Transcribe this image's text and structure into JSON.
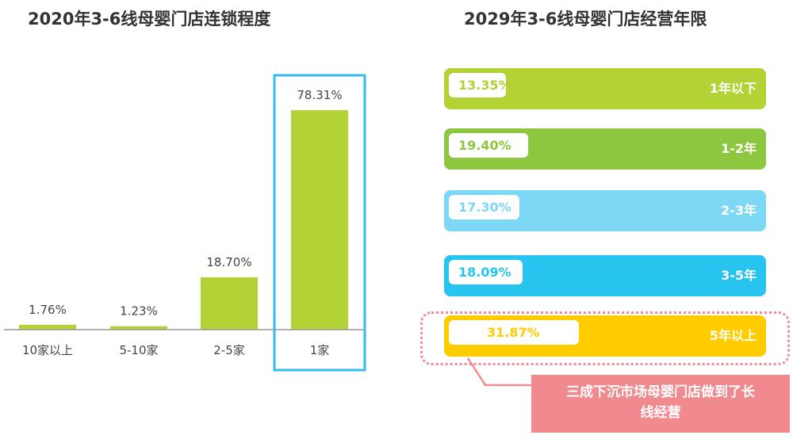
{
  "left_title": "2020年3-6线母婴门店连锁程度",
  "right_title": "2029年3-6线母婴门店经营年限",
  "colors": {
    "green": "#b2d235",
    "green_dark": "#8dc63f",
    "sky": "#7dd8f5",
    "cyan": "#27c4ef",
    "yellow": "#ffcc00",
    "highlight_frame": "#33bbee",
    "callout": "#f08a8f"
  },
  "chart_data": [
    {
      "type": "bar",
      "categories": [
        "10家以上",
        "5-10家",
        "2-5家",
        "1家"
      ],
      "values": [
        1.76,
        1.23,
        18.7,
        78.31
      ],
      "value_labels": [
        "1.76%",
        "1.23%",
        "18.70%",
        "78.31%"
      ],
      "ylim": [
        0,
        100
      ],
      "highlighted_category": "1家"
    },
    {
      "type": "bar",
      "orientation": "horizontal",
      "categories": [
        "1年以下",
        "1-2年",
        "2-3年",
        "3-5年",
        "5年以上"
      ],
      "values": [
        13.35,
        19.4,
        17.3,
        18.09,
        31.87
      ],
      "value_labels": [
        "13.35%",
        "19.40%",
        "17.30%",
        "18.09%",
        "31.87%"
      ],
      "highlighted_category": "5年以上"
    }
  ],
  "annotation": {
    "line1": "三成下沉市场母婴门店做到了长",
    "line2": "线经营"
  }
}
